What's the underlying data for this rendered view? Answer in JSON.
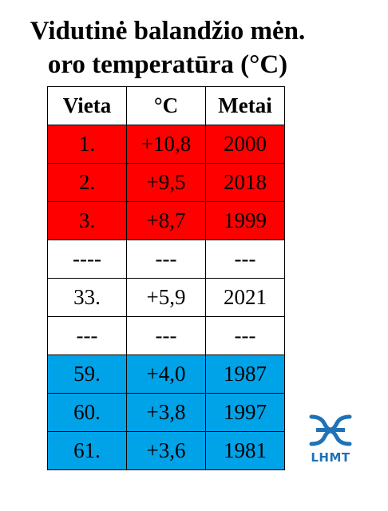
{
  "title": {
    "line1": "Vidutinė balandžio mėn.",
    "line2": "oro temperatūra (°C)"
  },
  "table": {
    "headers": [
      "Vieta",
      "°C",
      "Metai"
    ],
    "rows": [
      {
        "style": "red",
        "cells": [
          "1.",
          "+10,8",
          "2000"
        ]
      },
      {
        "style": "red",
        "cells": [
          "2.",
          "+9,5",
          "2018"
        ]
      },
      {
        "style": "red",
        "cells": [
          "3.",
          "+8,7",
          "1999"
        ]
      },
      {
        "style": "white",
        "cells": [
          "----",
          "---",
          "---"
        ]
      },
      {
        "style": "white",
        "cells": [
          "33.",
          "+5,9",
          "2021"
        ]
      },
      {
        "style": "white",
        "cells": [
          "---",
          "---",
          "---"
        ]
      },
      {
        "style": "blue",
        "cells": [
          "59.",
          "+4,0",
          "1987"
        ]
      },
      {
        "style": "blue",
        "cells": [
          "60.",
          "+3,8",
          "1997"
        ]
      },
      {
        "style": "blue",
        "cells": [
          "61.",
          "+3,6",
          "1981"
        ]
      }
    ]
  },
  "colors": {
    "top_rows": "#ff0000",
    "bottom_rows": "#00a2e8",
    "logo": "#1d72b8"
  },
  "logo": {
    "icon": "lhmt-waves-icon",
    "text": "LHMT"
  }
}
